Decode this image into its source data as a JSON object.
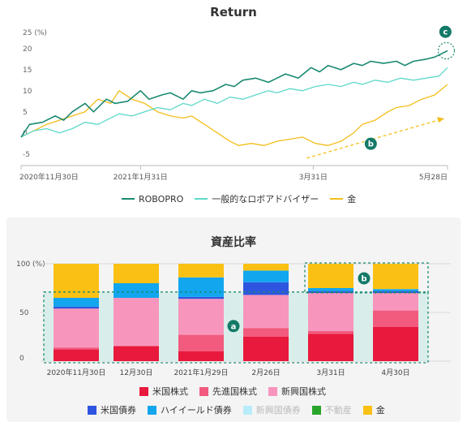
{
  "chart_data": [
    {
      "type": "line",
      "title": "Return",
      "y_unit_label": "25 (%)",
      "ylim": [
        -6,
        26
      ],
      "yticks": [
        20,
        15,
        10,
        5,
        0,
        -5
      ],
      "x_tick_labels": [
        "2020年11月30日",
        "2021年1月31日",
        "3月31日",
        "5月28日"
      ],
      "series": [
        {
          "name": "ROBOPRO",
          "color": "#1a8a72",
          "x": [
            0,
            0.02,
            0.05,
            0.08,
            0.1,
            0.12,
            0.15,
            0.17,
            0.2,
            0.22,
            0.25,
            0.28,
            0.3,
            0.33,
            0.35,
            0.38,
            0.4,
            0.42,
            0.45,
            0.48,
            0.5,
            0.52,
            0.55,
            0.58,
            0.6,
            0.62,
            0.65,
            0.68,
            0.7,
            0.72,
            0.75,
            0.78,
            0.8,
            0.82,
            0.85,
            0.88,
            0.9,
            0.92,
            0.95,
            0.97,
            1.0
          ],
          "y": [
            0,
            3,
            3.5,
            5,
            4,
            6,
            8,
            6,
            9,
            8,
            8.5,
            11,
            9,
            10,
            10.5,
            9,
            11,
            10.5,
            11,
            12.5,
            12,
            13.5,
            14,
            13,
            14,
            15,
            14,
            16.5,
            15.5,
            17,
            16,
            17.5,
            17,
            18,
            17.5,
            18,
            17,
            18,
            18.5,
            19,
            20.5
          ]
        },
        {
          "name": "一般的なロボアドバイザー",
          "color": "#5fd8c9",
          "x": [
            0,
            0.03,
            0.06,
            0.09,
            0.12,
            0.15,
            0.18,
            0.2,
            0.23,
            0.26,
            0.29,
            0.32,
            0.35,
            0.38,
            0.4,
            0.43,
            0.46,
            0.49,
            0.52,
            0.55,
            0.58,
            0.6,
            0.63,
            0.66,
            0.69,
            0.72,
            0.75,
            0.78,
            0.8,
            0.83,
            0.86,
            0.89,
            0.92,
            0.95,
            0.98,
            1.0
          ],
          "y": [
            0,
            1.5,
            2,
            1,
            2,
            3.5,
            3,
            4,
            5.5,
            5,
            6,
            7,
            6.5,
            8,
            7.5,
            9,
            8,
            9.5,
            9,
            10,
            11,
            10.5,
            11.5,
            11,
            12,
            12.5,
            12,
            13,
            12.5,
            13.5,
            13,
            14,
            13.5,
            14,
            14.5,
            16.5
          ]
        },
        {
          "name": "金",
          "color": "#f3be1a",
          "x": [
            0,
            0.03,
            0.06,
            0.09,
            0.12,
            0.15,
            0.18,
            0.21,
            0.23,
            0.26,
            0.29,
            0.32,
            0.35,
            0.38,
            0.4,
            0.43,
            0.46,
            0.49,
            0.51,
            0.54,
            0.57,
            0.6,
            0.63,
            0.66,
            0.69,
            0.72,
            0.75,
            0.78,
            0.8,
            0.83,
            0.86,
            0.88,
            0.91,
            0.94,
            0.97,
            1.0
          ],
          "y": [
            0,
            1.5,
            3,
            4,
            5,
            6,
            9,
            8,
            11,
            9,
            8,
            6,
            5,
            4.5,
            5,
            3,
            1,
            -1,
            -2,
            -1.5,
            -2,
            -1,
            -0.5,
            0,
            -1.5,
            -2,
            -1,
            1,
            3,
            4,
            6,
            7,
            7.5,
            9,
            10,
            12.5
          ]
        }
      ],
      "annotations": [
        "b",
        "c"
      ]
    },
    {
      "type": "bar",
      "stacked": true,
      "title": "資産比率",
      "y_unit_label": "100 (%)",
      "ylim": [
        0,
        100
      ],
      "yticks": [
        50,
        0
      ],
      "categories": [
        "2020年11月30日",
        "12月30日",
        "2021年1月29日",
        "2月26日",
        "3月31日",
        "4月30日"
      ],
      "series": [
        {
          "name": "米国株式",
          "color": "#e8193c",
          "values": [
            12,
            15,
            10,
            25,
            28,
            35
          ]
        },
        {
          "name": "先進国株式",
          "color": "#f25a7e",
          "values": [
            2,
            1,
            17,
            9,
            3,
            17
          ]
        },
        {
          "name": "新興国株式",
          "color": "#f895bd",
          "values": [
            40,
            49,
            37,
            34,
            39,
            18
          ]
        },
        {
          "name": "米国債券",
          "color": "#2e55e0",
          "values": [
            2,
            0,
            2,
            13,
            2,
            2
          ]
        },
        {
          "name": "ハイイールド債券",
          "color": "#12a6ee",
          "values": [
            9,
            15,
            20,
            12,
            3,
            2
          ]
        },
        {
          "name": "新興国債券",
          "color": "#b8ecfb",
          "values": [
            0,
            0,
            0,
            0,
            0,
            0
          ]
        },
        {
          "name": "不動産",
          "color": "#2aa52a",
          "values": [
            0,
            0,
            0,
            0,
            0,
            0
          ]
        },
        {
          "name": "金",
          "color": "#fac114",
          "values": [
            35,
            20,
            14,
            7,
            25,
            26
          ]
        }
      ],
      "annotations": [
        "a",
        "b"
      ]
    }
  ]
}
